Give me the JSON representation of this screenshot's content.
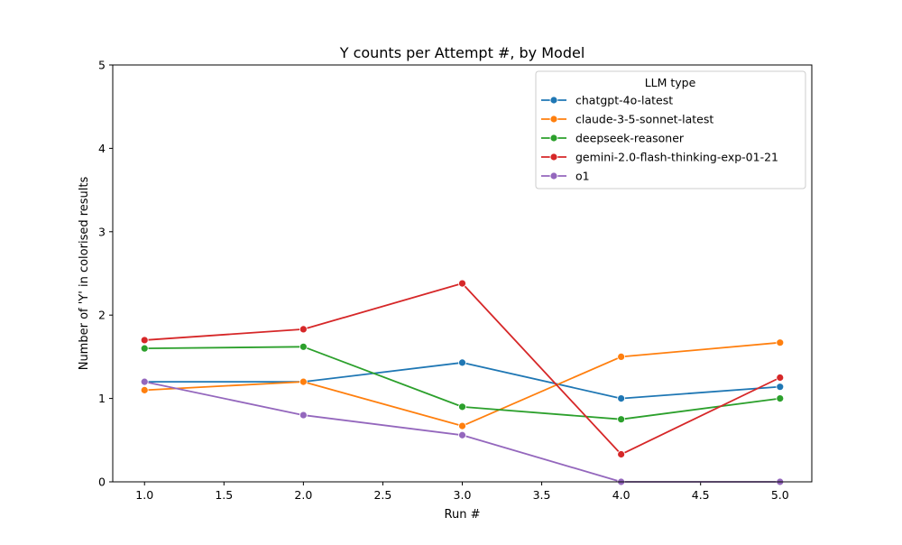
{
  "chart_data": {
    "type": "line",
    "title": "Y counts per Attempt #, by Model",
    "xlabel": "Run #",
    "ylabel": "Number of 'Y' in colorised results",
    "xlim": [
      0.8,
      5.2
    ],
    "ylim": [
      0,
      5
    ],
    "xticks": [
      "1.0",
      "1.5",
      "2.0",
      "2.5",
      "3.0",
      "3.5",
      "4.0",
      "4.5",
      "5.0"
    ],
    "yticks": [
      "0",
      "1",
      "2",
      "3",
      "4",
      "5"
    ],
    "legend_title": "LLM type",
    "legend_position": "upper-right",
    "grid": false,
    "x": [
      1,
      2,
      3,
      4,
      5
    ],
    "series": [
      {
        "name": "chatgpt-4o-latest",
        "color": "#1f77b4",
        "values": [
          1.2,
          1.2,
          1.43,
          1.0,
          1.14
        ]
      },
      {
        "name": "claude-3-5-sonnet-latest",
        "color": "#ff7f0e",
        "values": [
          1.1,
          1.2,
          0.67,
          1.5,
          1.67
        ]
      },
      {
        "name": "deepseek-reasoner",
        "color": "#2ca02c",
        "values": [
          1.6,
          1.62,
          0.9,
          0.75,
          1.0
        ]
      },
      {
        "name": "gemini-2.0-flash-thinking-exp-01-21",
        "color": "#d62728",
        "values": [
          1.7,
          1.83,
          2.38,
          0.33,
          1.25
        ]
      },
      {
        "name": "o1",
        "color": "#9467bd",
        "values": [
          1.2,
          0.8,
          0.56,
          0.0,
          0.0
        ]
      }
    ]
  }
}
